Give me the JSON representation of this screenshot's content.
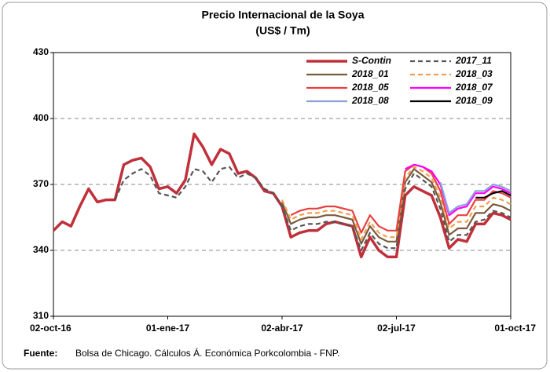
{
  "chart_data": {
    "type": "line",
    "title": "Precio Internacional de la Soya",
    "subtitle": "(US$ / Tm)",
    "source_label": "Fuente:",
    "source_text": "Bolsa de Chicago. Cálculos Á. Económica Porkcolombia - FNP.",
    "categories": [
      "02-oct-16",
      null,
      null,
      null,
      null,
      null,
      null,
      null,
      null,
      null,
      null,
      null,
      null,
      "01-ene-17",
      null,
      null,
      null,
      null,
      null,
      null,
      null,
      null,
      null,
      null,
      null,
      null,
      "02-abr-17",
      null,
      null,
      null,
      null,
      null,
      null,
      null,
      null,
      null,
      null,
      null,
      null,
      "02-jul-17",
      null,
      null,
      null,
      null,
      null,
      null,
      null,
      null,
      null,
      null,
      null,
      null,
      "01-oct-17"
    ],
    "ylim": [
      310,
      430
    ],
    "yticks": [
      310,
      340,
      370,
      400,
      430
    ],
    "grid": true,
    "legend": "top-right",
    "series": [
      {
        "name": "S-Contin",
        "color": "#c0303a",
        "values": [
          349,
          353,
          351,
          360,
          368,
          362,
          363,
          363,
          379,
          381,
          382,
          378,
          368,
          369,
          366,
          372,
          393,
          387,
          379,
          386,
          384,
          375,
          376,
          373,
          367,
          366,
          360,
          346,
          348,
          349,
          349,
          352,
          353,
          352,
          351,
          337,
          346,
          340,
          337,
          337,
          365,
          369,
          367,
          365,
          355,
          341,
          345,
          344,
          352,
          352,
          357,
          356,
          354
        ]
      },
      {
        "name": "2017_11",
        "color": "#555555",
        "dashed": true,
        "values": [
          null,
          null,
          null,
          null,
          null,
          null,
          null,
          363,
          372,
          375,
          377,
          374,
          366,
          365,
          364,
          369,
          377,
          376,
          371,
          377,
          378,
          373,
          375,
          373,
          368,
          366,
          360,
          349,
          351,
          352,
          352,
          353,
          353,
          352,
          351,
          340,
          348,
          343,
          341,
          341,
          368,
          375,
          372,
          369,
          359,
          344,
          347,
          347,
          353,
          354,
          358,
          357,
          355
        ]
      },
      {
        "name": "2018_01",
        "color": "#7b5a3a",
        "values": [
          null,
          null,
          null,
          null,
          null,
          null,
          null,
          null,
          null,
          null,
          null,
          null,
          null,
          null,
          null,
          null,
          null,
          null,
          null,
          null,
          null,
          null,
          null,
          null,
          null,
          null,
          362,
          352,
          354,
          355,
          355,
          356,
          356,
          355,
          354,
          343,
          351,
          346,
          344,
          344,
          371,
          377,
          374,
          371,
          362,
          347,
          350,
          350,
          357,
          357,
          361,
          360,
          358
        ]
      },
      {
        "name": "2018_03",
        "color": "#f0a050",
        "dashed": true,
        "values": [
          null,
          null,
          null,
          null,
          null,
          null,
          null,
          null,
          null,
          null,
          null,
          null,
          null,
          null,
          null,
          null,
          null,
          null,
          null,
          null,
          null,
          null,
          null,
          null,
          null,
          null,
          363,
          354,
          356,
          357,
          357,
          358,
          358,
          357,
          356,
          345,
          353,
          348,
          346,
          346,
          373,
          378,
          376,
          373,
          364,
          350,
          353,
          353,
          360,
          360,
          364,
          363,
          361
        ]
      },
      {
        "name": "2018_05",
        "color": "#e84040",
        "values": [
          null,
          null,
          null,
          null,
          null,
          null,
          null,
          null,
          null,
          null,
          null,
          null,
          null,
          null,
          null,
          null,
          null,
          null,
          null,
          null,
          null,
          null,
          null,
          null,
          null,
          null,
          null,
          356,
          358,
          359,
          359,
          360,
          360,
          359,
          358,
          348,
          356,
          351,
          349,
          349,
          376,
          379,
          378,
          375,
          367,
          352,
          356,
          356,
          363,
          363,
          367,
          366,
          364
        ]
      },
      {
        "name": "2018_07",
        "color": "#ff00ff",
        "values": [
          null,
          null,
          null,
          null,
          null,
          null,
          null,
          null,
          null,
          null,
          null,
          null,
          null,
          null,
          null,
          null,
          null,
          null,
          null,
          null,
          null,
          null,
          null,
          null,
          null,
          null,
          null,
          null,
          null,
          null,
          null,
          null,
          null,
          null,
          null,
          null,
          null,
          null,
          null,
          null,
          377,
          379,
          378,
          376,
          370,
          356,
          359,
          360,
          366,
          366,
          369,
          368,
          366
        ]
      },
      {
        "name": "2018_08",
        "color": "#8fa0d8",
        "values": [
          null,
          null,
          null,
          null,
          null,
          null,
          null,
          null,
          null,
          null,
          null,
          null,
          null,
          null,
          null,
          null,
          null,
          null,
          null,
          null,
          null,
          null,
          null,
          null,
          null,
          null,
          null,
          null,
          null,
          null,
          null,
          null,
          null,
          null,
          null,
          null,
          null,
          null,
          null,
          null,
          null,
          null,
          null,
          null,
          371,
          357,
          360,
          361,
          367,
          367,
          370,
          369,
          367
        ]
      },
      {
        "name": "2018_09",
        "color": "#000000",
        "values": [
          null,
          null,
          null,
          null,
          null,
          null,
          null,
          null,
          null,
          null,
          null,
          null,
          null,
          null,
          null,
          null,
          null,
          null,
          null,
          null,
          null,
          null,
          null,
          null,
          null,
          null,
          null,
          null,
          null,
          null,
          null,
          null,
          null,
          null,
          null,
          null,
          null,
          null,
          null,
          null,
          null,
          null,
          null,
          null,
          null,
          null,
          null,
          null,
          364,
          364,
          366,
          367,
          365
        ]
      }
    ]
  }
}
